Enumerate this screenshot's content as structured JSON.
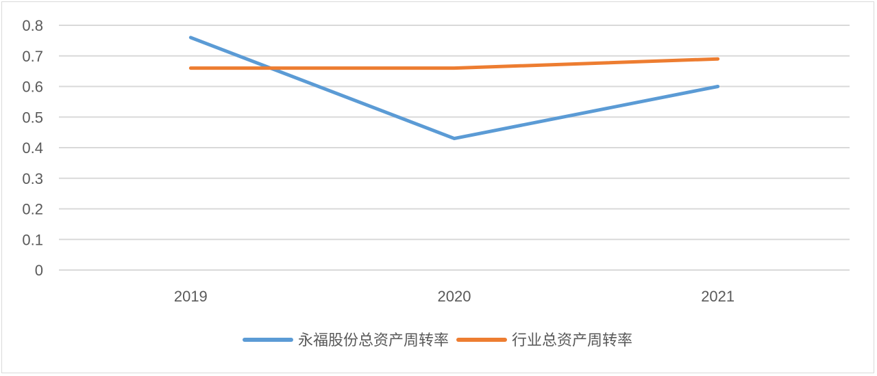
{
  "chart_data": {
    "type": "line",
    "title": "",
    "xlabel": "",
    "ylabel": "",
    "categories": [
      "2019",
      "2020",
      "2021"
    ],
    "ylim": [
      0,
      0.8
    ],
    "ytick_labels": [
      "0",
      "0.1",
      "0.2",
      "0.3",
      "0.4",
      "0.5",
      "0.6",
      "0.7",
      "0.8"
    ],
    "grid": true,
    "legend_position": "bottom",
    "series": [
      {
        "name": "永福股份总资产周转率",
        "values": [
          0.76,
          0.43,
          0.6
        ],
        "color": "#5b9bd5"
      },
      {
        "name": "行业总资产周转率",
        "values": [
          0.66,
          0.66,
          0.69
        ],
        "color": "#ed7d31"
      }
    ]
  }
}
